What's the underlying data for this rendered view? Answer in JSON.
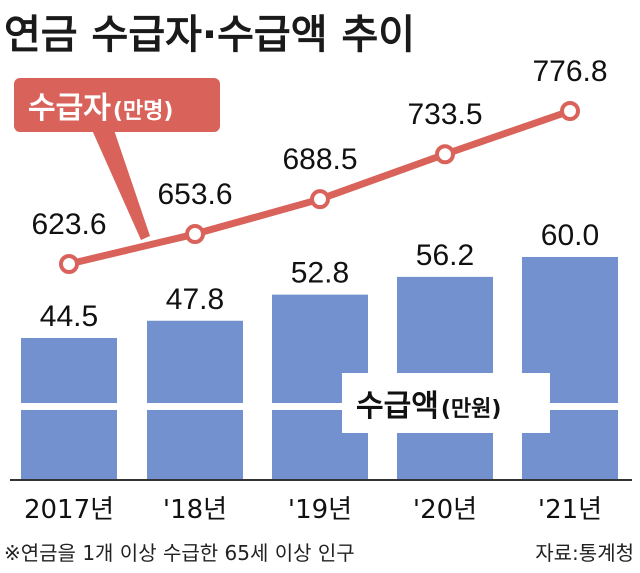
{
  "title": "연금 수급자·수급액 추이",
  "footnote": "※연금을 1개 이상 수급한 65세 이상 인구",
  "source": "자료:통계청",
  "chart_data": {
    "type": "bar",
    "categories": [
      "2017년",
      "'18년",
      "'19년",
      "'20년",
      "'21년"
    ],
    "series": [
      {
        "type": "line",
        "name_main": "수급자",
        "name_unit": "(만명)",
        "values": [
          623.6,
          653.6,
          688.5,
          733.5,
          776.8
        ],
        "value_labels": [
          "623.6",
          "653.6",
          "688.5",
          "733.5",
          "776.8"
        ],
        "color": "#d9625a"
      },
      {
        "type": "bar",
        "name_main": "수급액",
        "name_unit": "(만원)",
        "values": [
          44.5,
          47.8,
          52.8,
          56.2,
          60.0
        ],
        "value_labels": [
          "44.5",
          "47.8",
          "52.8",
          "56.2",
          "60.0"
        ],
        "color": "#7391cf"
      }
    ],
    "legend_placement": "inline",
    "grid": false
  }
}
